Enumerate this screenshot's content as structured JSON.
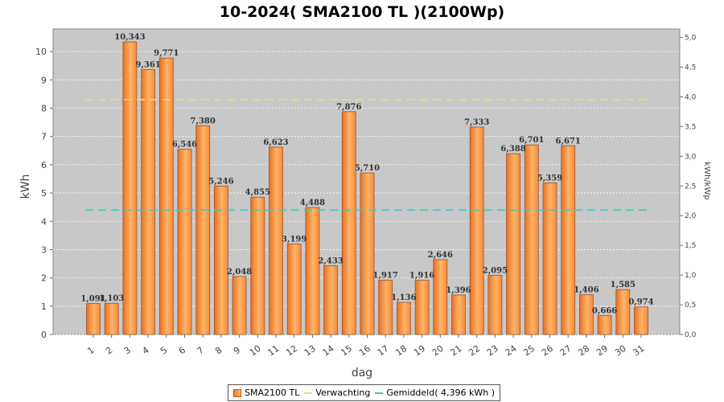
{
  "chart_data": {
    "type": "bar",
    "title": "10-2024( SMA2100 TL )(2100Wp)",
    "xlabel": "dag",
    "ylabel": "kWh",
    "ylabel_right": "kWh/kWp",
    "ylim": [
      0,
      10.8
    ],
    "ylim_right": [
      0,
      5.143
    ],
    "yticks": [
      "0",
      "1",
      "2",
      "3",
      "4",
      "5",
      "6",
      "7",
      "8",
      "9",
      "10"
    ],
    "yticks_right": [
      "0,0",
      "0,5",
      "1,0",
      "1,5",
      "2,0",
      "2,5",
      "3,0",
      "3,5",
      "4,0",
      "4,5",
      "5,0"
    ],
    "categories": [
      "1",
      "2",
      "3",
      "4",
      "5",
      "6",
      "7",
      "8",
      "9",
      "10",
      "11",
      "12",
      "13",
      "14",
      "15",
      "16",
      "17",
      "18",
      "19",
      "20",
      "21",
      "22",
      "23",
      "24",
      "25",
      "26",
      "27",
      "28",
      "29",
      "30",
      "31"
    ],
    "series": [
      {
        "name": "SMA2100 TL",
        "values": [
          1.091,
          1.103,
          10.343,
          9.361,
          9.771,
          6.546,
          7.38,
          5.246,
          2.048,
          4.855,
          6.623,
          3.199,
          4.488,
          2.433,
          7.876,
          5.71,
          1.917,
          1.136,
          1.916,
          2.646,
          1.396,
          7.333,
          2.095,
          6.388,
          6.701,
          5.359,
          6.671,
          1.406,
          0.666,
          1.585,
          0.974
        ],
        "labels": [
          "1,091",
          "1,103",
          "10,343",
          "9,361",
          "9,771",
          "6,546",
          "7,380",
          "5,246",
          "2,048",
          "4,855",
          "6,623",
          "3,199",
          "4,488",
          "2,433",
          "7,876",
          "5,710",
          "1,917",
          "1,136",
          "1,916",
          "2,646",
          "1,396",
          "7,333",
          "2,095",
          "6,388",
          "6,701",
          "5,359",
          "6,671",
          "1,406",
          "0,666",
          "1,585",
          "0,974"
        ]
      }
    ],
    "reference_lines": [
      {
        "name": "Verwachting",
        "value": 8.3,
        "color": "#f0e060"
      },
      {
        "name": "Gemiddeld( 4,396 kWh )",
        "value": 4.396,
        "color": "#40c8c0"
      }
    ],
    "legend": [
      "SMA2100 TL",
      "Verwachting",
      "Gemiddeld( 4,396 kWh )"
    ],
    "colors": {
      "bar_dark": "#f07a28",
      "bar_light": "#ffb870",
      "plot_bg": "#c8c8c8",
      "grid": "#ffffff"
    }
  }
}
